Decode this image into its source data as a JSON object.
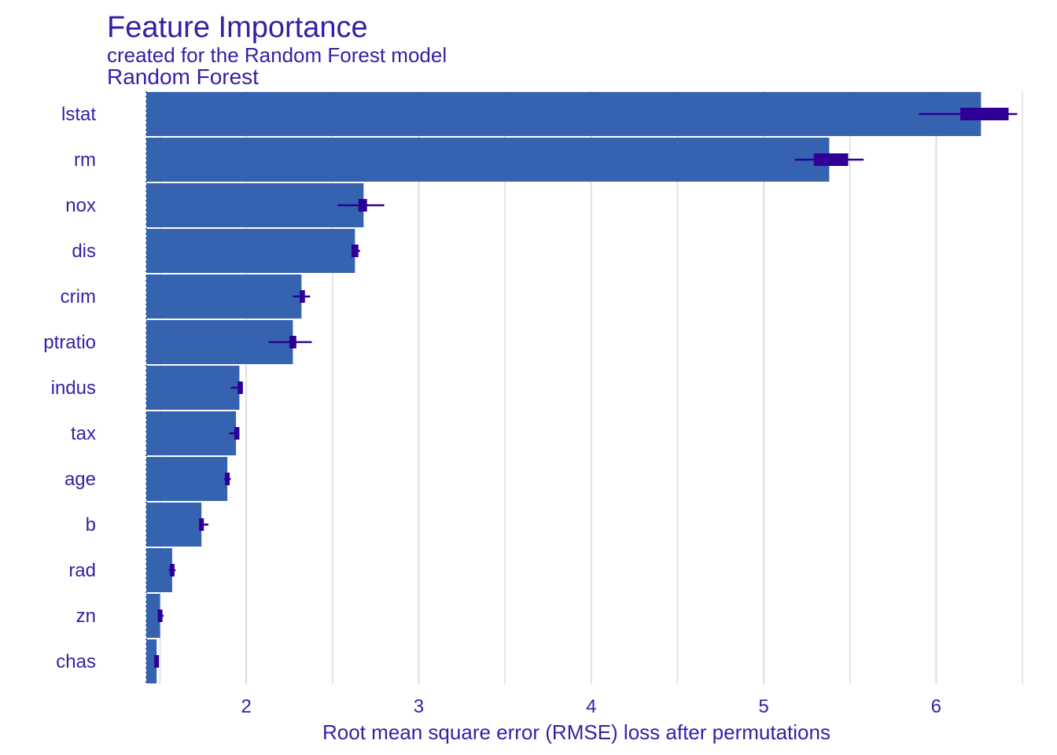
{
  "colors": {
    "text": "#371ea3",
    "bar": "#3563b0",
    "box": "#2e0095",
    "grid": "#dedede",
    "background": "#ffffff"
  },
  "chart_data": {
    "type": "bar",
    "orientation": "horizontal",
    "title": "Feature Importance",
    "subtitle": "created for the Random Forest model",
    "facet_label": "Random Forest",
    "xlabel": "Root mean square error (RMSE) loss after permutations",
    "ylabel": "",
    "baseline": 1.42,
    "xlim": [
      1.42,
      6.5
    ],
    "xticks": [
      2,
      3,
      4,
      5,
      6
    ],
    "grid": true,
    "legend": "none",
    "categories": [
      "lstat",
      "rm",
      "nox",
      "dis",
      "crim",
      "ptratio",
      "indus",
      "tax",
      "age",
      "b",
      "rad",
      "zn",
      "chas"
    ],
    "values": [
      6.26,
      5.38,
      2.68,
      2.63,
      2.32,
      2.27,
      1.96,
      1.94,
      1.89,
      1.74,
      1.57,
      1.5,
      1.48
    ],
    "boxplots": [
      {
        "min": 5.9,
        "q1": 6.14,
        "median": 6.28,
        "q3": 6.42,
        "max": 6.47
      },
      {
        "min": 5.18,
        "q1": 5.29,
        "median": 5.38,
        "q3": 5.49,
        "max": 5.58
      },
      {
        "min": 2.53,
        "q1": 2.65,
        "median": 2.68,
        "q3": 2.7,
        "max": 2.8
      },
      {
        "min": 2.61,
        "q1": 2.61,
        "median": 2.63,
        "q3": 2.65,
        "max": 2.66
      },
      {
        "min": 2.27,
        "q1": 2.31,
        "median": 2.33,
        "q3": 2.34,
        "max": 2.37
      },
      {
        "min": 2.13,
        "q1": 2.25,
        "median": 2.27,
        "q3": 2.29,
        "max": 2.38
      },
      {
        "min": 1.91,
        "q1": 1.95,
        "median": 1.96,
        "q3": 1.98,
        "max": 1.98
      },
      {
        "min": 1.9,
        "q1": 1.93,
        "median": 1.94,
        "q3": 1.96,
        "max": 1.96
      },
      {
        "min": 1.87,
        "q1": 1.88,
        "median": 1.89,
        "q3": 1.9,
        "max": 1.91
      },
      {
        "min": 1.73,
        "q1": 1.73,
        "median": 1.74,
        "q3": 1.75,
        "max": 1.78
      },
      {
        "min": 1.55,
        "q1": 1.56,
        "median": 1.57,
        "q3": 1.58,
        "max": 1.59
      },
      {
        "min": 1.49,
        "q1": 1.49,
        "median": 1.5,
        "q3": 1.51,
        "max": 1.52
      },
      {
        "min": 1.47,
        "q1": 1.47,
        "median": 1.48,
        "q3": 1.49,
        "max": 1.49
      }
    ]
  }
}
